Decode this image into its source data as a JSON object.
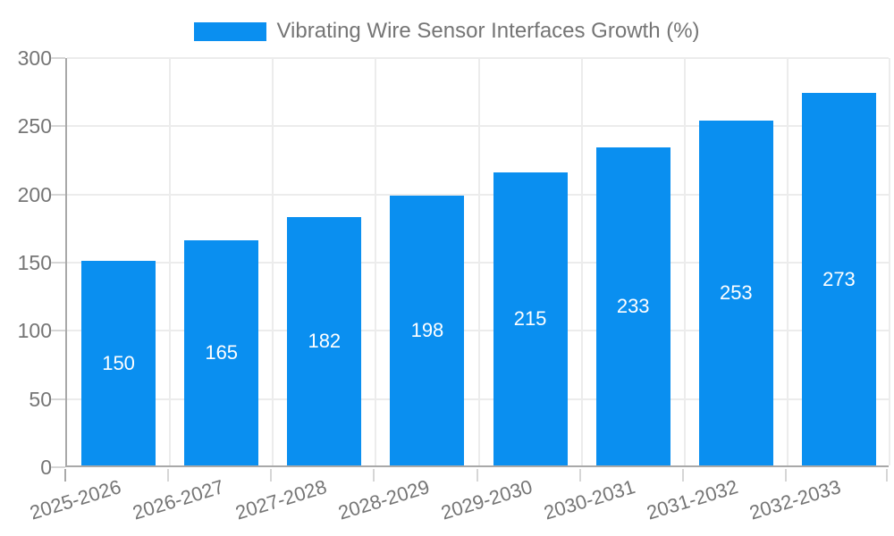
{
  "chart_data": {
    "type": "bar",
    "title": "Vibrating Wire Sensor Interfaces Growth (%)",
    "categories": [
      "2025-2026",
      "2026-2027",
      "2027-2028",
      "2028-2029",
      "2029-2030",
      "2030-2031",
      "2031-2032",
      "2032-2033"
    ],
    "values": [
      150,
      165,
      182,
      198,
      215,
      233,
      253,
      273
    ],
    "xlabel": "",
    "ylabel": "",
    "ylim": [
      0,
      300
    ],
    "yticks": [
      0,
      50,
      100,
      150,
      200,
      250,
      300
    ],
    "grid": true,
    "legend_position": "top",
    "colors": {
      "bar": "#0a8ff0",
      "value_label": "#ffffff",
      "axis_text": "#757575",
      "axis_line": "#a9a9a9",
      "gridline": "#ececec",
      "tick": "#d6d6d6",
      "background": "#ffffff"
    }
  }
}
